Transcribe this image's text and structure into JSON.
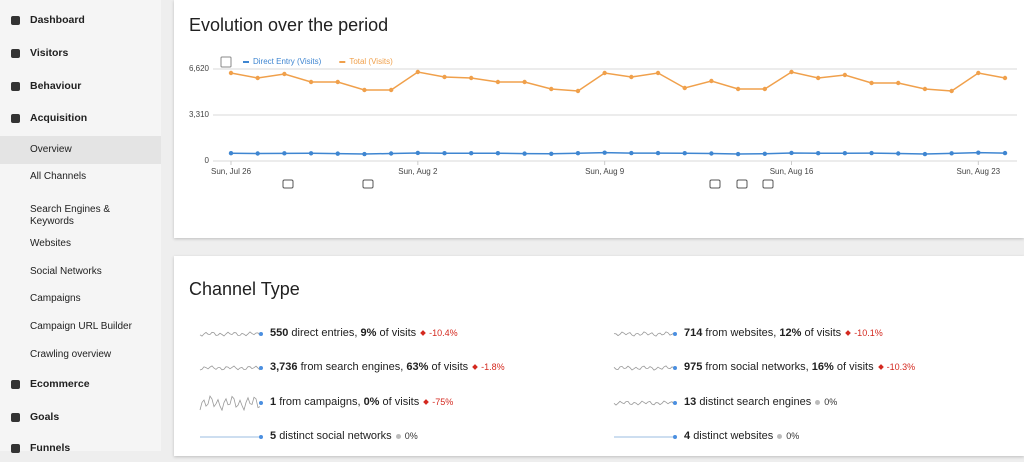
{
  "sidebar": {
    "items": [
      {
        "label": "Dashboard"
      },
      {
        "label": "Visitors"
      },
      {
        "label": "Behaviour"
      },
      {
        "label": "Acquisition"
      },
      {
        "label": "Overview"
      },
      {
        "label": "All Channels"
      },
      {
        "label": "Search Engines & Keywords"
      },
      {
        "label": "Websites"
      },
      {
        "label": "Social Networks"
      },
      {
        "label": "Campaigns"
      },
      {
        "label": "Campaign URL Builder"
      },
      {
        "label": "Crawling overview"
      },
      {
        "label": "Ecommerce"
      },
      {
        "label": "Goals"
      },
      {
        "label": "Funnels"
      }
    ]
  },
  "evolution": {
    "title": "Evolution over the period"
  },
  "chart_data": {
    "type": "line",
    "categories": [
      "Sun, Jul 26",
      null,
      null,
      null,
      null,
      null,
      null,
      "Sun, Aug 2",
      null,
      null,
      null,
      null,
      null,
      null,
      "Sun, Aug 9",
      null,
      null,
      null,
      null,
      null,
      null,
      "Sun, Aug 16",
      null,
      null,
      null,
      null,
      null,
      null,
      "Sun, Aug 23",
      null
    ],
    "series": [
      {
        "name": "Direct Entry (Visits)",
        "color": "#3f86d1",
        "values": [
          560,
          540,
          550,
          555,
          530,
          500,
          540,
          580,
          560,
          560,
          560,
          530,
          520,
          560,
          600,
          570,
          570,
          560,
          540,
          500,
          520,
          580,
          560,
          560,
          570,
          540,
          500,
          550,
          600,
          570
        ]
      },
      {
        "name": "Total (Visits)",
        "color": "#f0a04b",
        "values": [
          6332,
          5972,
          6260,
          5685,
          5685,
          5109,
          5109,
          6404,
          6044,
          5972,
          5685,
          5685,
          5181,
          5037,
          6332,
          6044,
          6332,
          5253,
          5757,
          5181,
          5181,
          6404,
          5972,
          6188,
          5613,
          5613,
          5181,
          5037,
          6332,
          5972
        ]
      }
    ],
    "ylim": [
      0,
      6620
    ],
    "yticks": [
      0,
      {
        "value": 3310,
        "label": "3,310"
      },
      {
        "value": 6620,
        "label": "6,620"
      }
    ],
    "grid": true
  },
  "channel_type": {
    "title": "Channel Type",
    "items": [
      {
        "count": "550",
        "label": "direct entries,",
        "pct": "9%",
        "pct_label": "of visits",
        "change": "-10.4%"
      },
      {
        "count": "3,736",
        "label": "from search engines,",
        "pct": "63%",
        "pct_label": "of visits",
        "change": "-1.8%"
      },
      {
        "count": "1",
        "label": "from campaigns,",
        "pct": "0%",
        "pct_label": "of visits",
        "change": "-75%"
      },
      {
        "count": "5",
        "label": "distinct social networks",
        "change": "0%"
      },
      {
        "count": "714",
        "label": "from websites,",
        "pct": "12%",
        "pct_label": "of visits",
        "change": "-10.1%"
      },
      {
        "count": "975",
        "label": "from social networks,",
        "pct": "16%",
        "pct_label": "of visits",
        "change": "-10.3%"
      },
      {
        "count": "13",
        "label": "distinct search engines",
        "change": "0%"
      },
      {
        "count": "4",
        "label": "distinct websites",
        "change": "0%"
      }
    ]
  }
}
